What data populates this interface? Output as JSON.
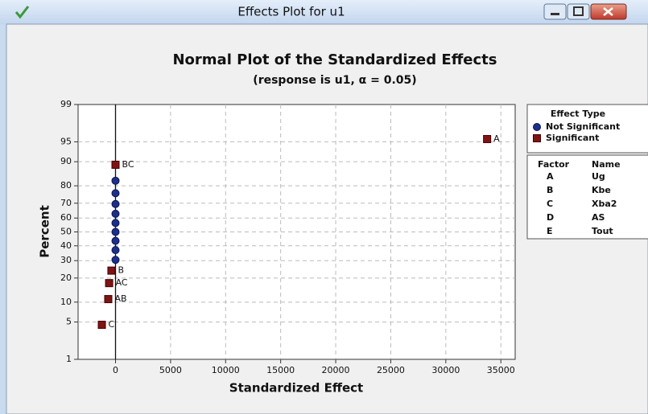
{
  "window": {
    "title": "Effects Plot for u1"
  },
  "chart_data": {
    "type": "normal_probability",
    "title": "Normal Plot of the Standardized Effects",
    "subtitle": "(response is u1, α = 0.05)",
    "x_label": "Standardized Effect",
    "y_label": "Percent",
    "xlim": [
      -3400,
      36300
    ],
    "ylim": [
      1,
      99
    ],
    "xticks": [
      0,
      5000,
      10000,
      15000,
      20000,
      25000,
      30000,
      35000
    ],
    "yticks": [
      1,
      5,
      10,
      20,
      30,
      40,
      50,
      60,
      70,
      80,
      90,
      95,
      99
    ],
    "y_scale": "normal",
    "grid": true,
    "reference_x": 0,
    "legend_title": "Effect Type",
    "series": [
      {
        "name": "Not Significant",
        "color": "#1c2f8a",
        "marker": "circle",
        "x": [
          0,
          0,
          0,
          0,
          0,
          0,
          0,
          0,
          0
        ],
        "values": [
          30.5,
          37.0,
          43.5,
          50.0,
          56.5,
          63.0,
          69.5,
          76.0,
          82.5
        ]
      },
      {
        "name": "Significant",
        "color": "#7f1414",
        "marker": "square",
        "x": [
          -1240,
          -660,
          -580,
          -370,
          0,
          33750
        ],
        "values": [
          4.5,
          11.0,
          17.5,
          24.0,
          89.0,
          95.5
        ],
        "point_labels": [
          "C",
          "AB",
          "AC",
          "B",
          "BC",
          "A"
        ]
      }
    ],
    "factor_table": {
      "headers": [
        "Factor",
        "Name"
      ],
      "rows": [
        [
          "A",
          "Ug"
        ],
        [
          "B",
          "Kbe"
        ],
        [
          "C",
          "Xba2"
        ],
        [
          "D",
          "AS"
        ],
        [
          "E",
          "Tout"
        ]
      ]
    }
  }
}
